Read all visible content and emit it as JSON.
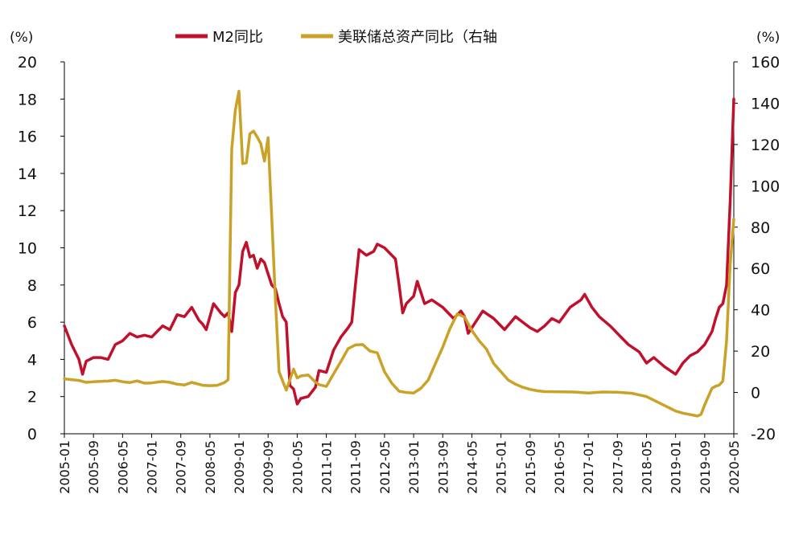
{
  "chart_data": {
    "type": "line",
    "left_unit": "(%)",
    "right_unit": "(%)",
    "legend_position": "top-center",
    "grid": false,
    "left_axis": {
      "min": 0,
      "max": 20,
      "ticks": [
        0,
        2,
        4,
        6,
        8,
        10,
        12,
        14,
        16,
        18,
        20
      ]
    },
    "right_axis": {
      "min": -20,
      "max": 160,
      "ticks": [
        -20,
        0,
        20,
        40,
        60,
        80,
        100,
        120,
        140,
        160
      ]
    },
    "x_axis": {
      "start": "2005-01",
      "end": "2020-05",
      "tick_labels": [
        "2005-01",
        "2005-09",
        "2006-05",
        "2007-01",
        "2007-09",
        "2008-05",
        "2009-01",
        "2009-09",
        "2010-05",
        "2011-01",
        "2011-09",
        "2012-05",
        "2013-01",
        "2013-09",
        "2014-05",
        "2015-01",
        "2015-09",
        "2016-05",
        "2017-01",
        "2017-09",
        "2018-05",
        "2019-01",
        "2019-09",
        "2020-05"
      ]
    },
    "series": [
      {
        "name": "M2同比",
        "axis": "left",
        "color": "#C0102C",
        "points": [
          [
            "2005-01",
            5.8
          ],
          [
            "2005-03",
            4.8
          ],
          [
            "2005-05",
            4.0
          ],
          [
            "2005-06",
            3.2
          ],
          [
            "2005-07",
            3.9
          ],
          [
            "2005-09",
            4.1
          ],
          [
            "2005-11",
            4.1
          ],
          [
            "2006-01",
            4.0
          ],
          [
            "2006-03",
            4.8
          ],
          [
            "2006-05",
            5.0
          ],
          [
            "2006-07",
            5.4
          ],
          [
            "2006-09",
            5.2
          ],
          [
            "2006-11",
            5.3
          ],
          [
            "2007-01",
            5.2
          ],
          [
            "2007-04",
            5.8
          ],
          [
            "2007-06",
            5.6
          ],
          [
            "2007-08",
            6.4
          ],
          [
            "2007-10",
            6.3
          ],
          [
            "2007-12",
            6.8
          ],
          [
            "2008-02",
            6.1
          ],
          [
            "2008-03",
            5.9
          ],
          [
            "2008-04",
            5.6
          ],
          [
            "2008-06",
            7.0
          ],
          [
            "2008-08",
            6.5
          ],
          [
            "2008-09",
            6.3
          ],
          [
            "2008-10",
            6.5
          ],
          [
            "2008-11",
            5.5
          ],
          [
            "2008-12",
            7.6
          ],
          [
            "2009-01",
            8.0
          ],
          [
            "2009-02",
            9.8
          ],
          [
            "2009-03",
            10.3
          ],
          [
            "2009-04",
            9.5
          ],
          [
            "2009-05",
            9.6
          ],
          [
            "2009-06",
            8.9
          ],
          [
            "2009-07",
            9.4
          ],
          [
            "2009-08",
            9.2
          ],
          [
            "2009-09",
            8.6
          ],
          [
            "2009-10",
            8.0
          ],
          [
            "2009-11",
            7.8
          ],
          [
            "2009-12",
            7.0
          ],
          [
            "2010-01",
            6.3
          ],
          [
            "2010-02",
            6.0
          ],
          [
            "2010-03",
            2.6
          ],
          [
            "2010-04",
            2.4
          ],
          [
            "2010-05",
            1.6
          ],
          [
            "2010-06",
            1.9
          ],
          [
            "2010-08",
            2.0
          ],
          [
            "2010-10",
            2.5
          ],
          [
            "2010-11",
            3.4
          ],
          [
            "2011-01",
            3.3
          ],
          [
            "2011-03",
            4.5
          ],
          [
            "2011-05",
            5.2
          ],
          [
            "2011-07",
            5.7
          ],
          [
            "2011-08",
            6.0
          ],
          [
            "2011-09",
            8.0
          ],
          [
            "2011-10",
            9.9
          ],
          [
            "2011-12",
            9.6
          ],
          [
            "2012-02",
            9.8
          ],
          [
            "2012-03",
            10.2
          ],
          [
            "2012-05",
            10.0
          ],
          [
            "2012-08",
            9.4
          ],
          [
            "2012-09",
            8.0
          ],
          [
            "2012-10",
            6.5
          ],
          [
            "2012-11",
            7.0
          ],
          [
            "2013-01",
            7.4
          ],
          [
            "2013-02",
            8.2
          ],
          [
            "2013-04",
            7.0
          ],
          [
            "2013-06",
            7.2
          ],
          [
            "2013-09",
            6.8
          ],
          [
            "2013-12",
            6.2
          ],
          [
            "2014-02",
            6.6
          ],
          [
            "2014-03",
            6.3
          ],
          [
            "2014-04",
            5.4
          ],
          [
            "2014-06",
            6.0
          ],
          [
            "2014-08",
            6.6
          ],
          [
            "2014-11",
            6.2
          ],
          [
            "2015-02",
            5.6
          ],
          [
            "2015-05",
            6.3
          ],
          [
            "2015-07",
            6.0
          ],
          [
            "2015-09",
            5.7
          ],
          [
            "2015-11",
            5.5
          ],
          [
            "2016-01",
            5.8
          ],
          [
            "2016-03",
            6.2
          ],
          [
            "2016-05",
            6.0
          ],
          [
            "2016-08",
            6.8
          ],
          [
            "2016-11",
            7.2
          ],
          [
            "2016-12",
            7.5
          ],
          [
            "2017-02",
            6.8
          ],
          [
            "2017-04",
            6.3
          ],
          [
            "2017-07",
            5.8
          ],
          [
            "2017-10",
            5.2
          ],
          [
            "2017-12",
            4.8
          ],
          [
            "2018-03",
            4.4
          ],
          [
            "2018-05",
            3.8
          ],
          [
            "2018-07",
            4.1
          ],
          [
            "2018-10",
            3.6
          ],
          [
            "2019-01",
            3.2
          ],
          [
            "2019-03",
            3.8
          ],
          [
            "2019-05",
            4.2
          ],
          [
            "2019-07",
            4.4
          ],
          [
            "2019-09",
            4.8
          ],
          [
            "2019-11",
            5.5
          ],
          [
            "2019-12",
            6.2
          ],
          [
            "2020-01",
            6.8
          ],
          [
            "2020-02",
            7.0
          ],
          [
            "2020-03",
            8.0
          ],
          [
            "2020-04",
            12.5
          ],
          [
            "2020-05",
            18.0
          ]
        ]
      },
      {
        "name": "美联储总资产同比（右轴",
        "axis": "right",
        "color": "#C9A227",
        "points": [
          [
            "2005-01",
            6.6
          ],
          [
            "2005-03",
            6.2
          ],
          [
            "2005-05",
            5.8
          ],
          [
            "2005-07",
            4.9
          ],
          [
            "2005-09",
            5.2
          ],
          [
            "2005-11",
            5.4
          ],
          [
            "2006-01",
            5.5
          ],
          [
            "2006-03",
            5.9
          ],
          [
            "2006-05",
            5.2
          ],
          [
            "2006-07",
            4.8
          ],
          [
            "2006-09",
            5.6
          ],
          [
            "2006-11",
            4.5
          ],
          [
            "2007-01",
            4.6
          ],
          [
            "2007-04",
            5.3
          ],
          [
            "2007-06",
            4.9
          ],
          [
            "2007-08",
            4.0
          ],
          [
            "2007-10",
            3.6
          ],
          [
            "2007-12",
            4.9
          ],
          [
            "2008-03",
            3.5
          ],
          [
            "2008-05",
            3.3
          ],
          [
            "2008-07",
            3.4
          ],
          [
            "2008-09",
            4.8
          ],
          [
            "2008-10",
            6.2
          ],
          [
            "2008-11",
            117.7
          ],
          [
            "2008-12",
            136.7
          ],
          [
            "2009-01",
            145.8
          ],
          [
            "2009-02",
            110.8
          ],
          [
            "2009-03",
            111.1
          ],
          [
            "2009-04",
            125.2
          ],
          [
            "2009-05",
            126.5
          ],
          [
            "2009-06",
            123.6
          ],
          [
            "2009-07",
            120.3
          ],
          [
            "2009-08",
            112.0
          ],
          [
            "2009-09",
            123.3
          ],
          [
            "2009-10",
            85.0
          ],
          [
            "2009-11",
            45.0
          ],
          [
            "2009-12",
            10.0
          ],
          [
            "2010-02",
            1.1
          ],
          [
            "2010-04",
            11.3
          ],
          [
            "2010-05",
            7.0
          ],
          [
            "2010-06",
            8.0
          ],
          [
            "2010-08",
            8.5
          ],
          [
            "2010-10",
            5.0
          ],
          [
            "2010-11",
            3.8
          ],
          [
            "2011-01",
            2.9
          ],
          [
            "2011-03",
            9.0
          ],
          [
            "2011-05",
            15.0
          ],
          [
            "2011-07",
            21.2
          ],
          [
            "2011-09",
            23.0
          ],
          [
            "2011-11",
            23.2
          ],
          [
            "2012-01",
            20.0
          ],
          [
            "2012-03",
            19.2
          ],
          [
            "2012-05",
            10.0
          ],
          [
            "2012-07",
            4.4
          ],
          [
            "2012-09",
            0.6
          ],
          [
            "2012-11",
            0.0
          ],
          [
            "2013-01",
            -0.3
          ],
          [
            "2013-03",
            2.0
          ],
          [
            "2013-05",
            6.0
          ],
          [
            "2013-07",
            14.0
          ],
          [
            "2013-09",
            22.0
          ],
          [
            "2013-11",
            31.0
          ],
          [
            "2014-01",
            38.0
          ],
          [
            "2014-03",
            36.5
          ],
          [
            "2014-05",
            30.0
          ],
          [
            "2014-07",
            25.0
          ],
          [
            "2014-09",
            21.0
          ],
          [
            "2014-11",
            14.0
          ],
          [
            "2015-01",
            10.0
          ],
          [
            "2015-03",
            6.0
          ],
          [
            "2015-05",
            4.0
          ],
          [
            "2015-07",
            2.5
          ],
          [
            "2015-09",
            1.5
          ],
          [
            "2015-11",
            0.8
          ],
          [
            "2016-01",
            0.4
          ],
          [
            "2016-05",
            0.3
          ],
          [
            "2016-09",
            0.2
          ],
          [
            "2017-01",
            -0.3
          ],
          [
            "2017-05",
            0.2
          ],
          [
            "2017-09",
            0.1
          ],
          [
            "2018-01",
            -0.4
          ],
          [
            "2018-05",
            -2.0
          ],
          [
            "2018-09",
            -5.5
          ],
          [
            "2019-01",
            -9.0
          ],
          [
            "2019-03",
            -10.0
          ],
          [
            "2019-05",
            -10.7
          ],
          [
            "2019-07",
            -11.4
          ],
          [
            "2019-08",
            -10.6
          ],
          [
            "2019-09",
            -6.0
          ],
          [
            "2019-10",
            -2.0
          ],
          [
            "2019-11",
            2.0
          ],
          [
            "2019-12",
            3.0
          ],
          [
            "2020-01",
            3.6
          ],
          [
            "2020-02",
            5.5
          ],
          [
            "2020-03",
            25.0
          ],
          [
            "2020-04",
            62.0
          ],
          [
            "2020-05",
            84.0
          ]
        ]
      }
    ]
  }
}
